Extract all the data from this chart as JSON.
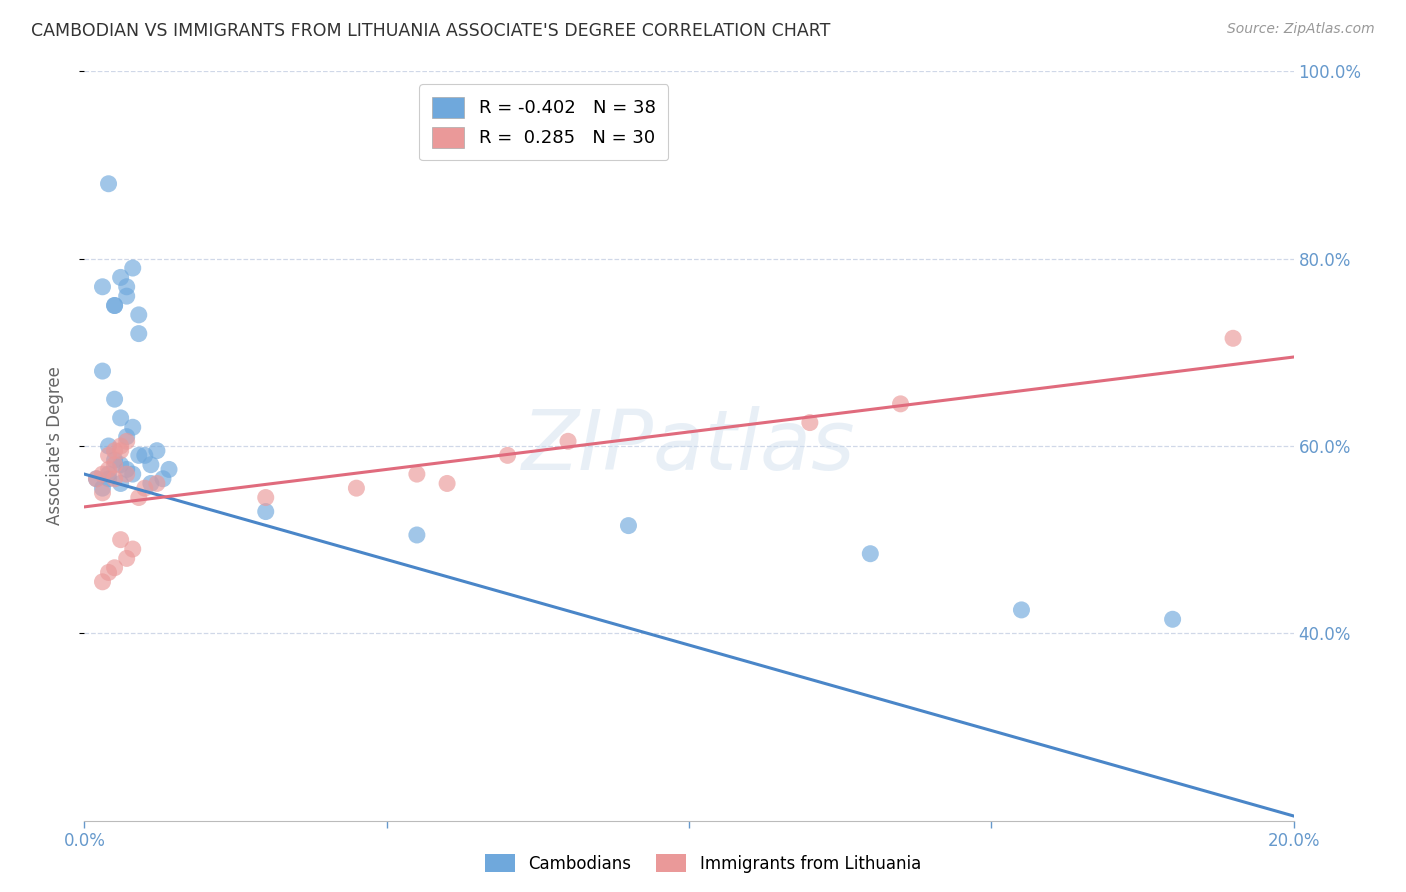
{
  "title": "CAMBODIAN VS IMMIGRANTS FROM LITHUANIA ASSOCIATE'S DEGREE CORRELATION CHART",
  "source": "Source: ZipAtlas.com",
  "ylabel": "Associate's Degree",
  "watermark": "ZIPatlas",
  "legend_blue_r": "R = -0.402",
  "legend_blue_n": "N = 38",
  "legend_pink_r": "R =  0.285",
  "legend_pink_n": "N = 30",
  "legend_blue_label": "Cambodians",
  "legend_pink_label": "Immigrants from Lithuania",
  "xmin": 0.0,
  "xmax": 0.2,
  "ymin": 0.2,
  "ymax": 1.0,
  "xticks": [
    0.0,
    0.05,
    0.1,
    0.15,
    0.2
  ],
  "yticks": [
    0.4,
    0.6,
    0.8,
    1.0
  ],
  "ytick_labels": [
    "40.0%",
    "60.0%",
    "80.0%",
    "100.0%"
  ],
  "xtick_labels": [
    "0.0%",
    "",
    "",
    "",
    "20.0%"
  ],
  "blue_color": "#6fa8dc",
  "pink_color": "#ea9999",
  "blue_line_color": "#4a86c8",
  "pink_line_color": "#e06b7d",
  "axis_color": "#6699cc",
  "grid_color": "#d0d8e8",
  "blue_x": [
    0.002,
    0.004,
    0.006,
    0.003,
    0.005,
    0.007,
    0.004,
    0.006,
    0.008,
    0.003,
    0.005,
    0.007,
    0.009,
    0.004,
    0.006,
    0.008,
    0.005,
    0.007,
    0.009,
    0.003,
    0.005,
    0.006,
    0.004,
    0.008,
    0.007,
    0.009,
    0.012,
    0.01,
    0.011,
    0.013,
    0.014,
    0.011,
    0.03,
    0.055,
    0.09,
    0.13,
    0.155,
    0.18
  ],
  "blue_y": [
    0.565,
    0.57,
    0.56,
    0.555,
    0.585,
    0.575,
    0.565,
    0.58,
    0.57,
    0.77,
    0.75,
    0.76,
    0.74,
    0.88,
    0.78,
    0.79,
    0.75,
    0.77,
    0.72,
    0.68,
    0.65,
    0.63,
    0.6,
    0.62,
    0.61,
    0.59,
    0.595,
    0.59,
    0.58,
    0.565,
    0.575,
    0.56,
    0.53,
    0.505,
    0.515,
    0.485,
    0.425,
    0.415
  ],
  "pink_x": [
    0.002,
    0.004,
    0.003,
    0.005,
    0.004,
    0.006,
    0.005,
    0.007,
    0.006,
    0.003,
    0.005,
    0.007,
    0.004,
    0.006,
    0.008,
    0.003,
    0.005,
    0.007,
    0.009,
    0.01,
    0.012,
    0.03,
    0.045,
    0.055,
    0.06,
    0.07,
    0.08,
    0.12,
    0.135,
    0.19
  ],
  "pink_y": [
    0.565,
    0.575,
    0.57,
    0.58,
    0.59,
    0.6,
    0.595,
    0.605,
    0.595,
    0.455,
    0.47,
    0.48,
    0.465,
    0.5,
    0.49,
    0.55,
    0.565,
    0.57,
    0.545,
    0.555,
    0.56,
    0.545,
    0.555,
    0.57,
    0.56,
    0.59,
    0.605,
    0.625,
    0.645,
    0.715
  ],
  "blue_line_x0": 0.0,
  "blue_line_y0": 0.57,
  "blue_line_x1": 0.2,
  "blue_line_y1": 0.205,
  "pink_line_x0": 0.0,
  "pink_line_y0": 0.535,
  "pink_line_x1": 0.2,
  "pink_line_y1": 0.695
}
